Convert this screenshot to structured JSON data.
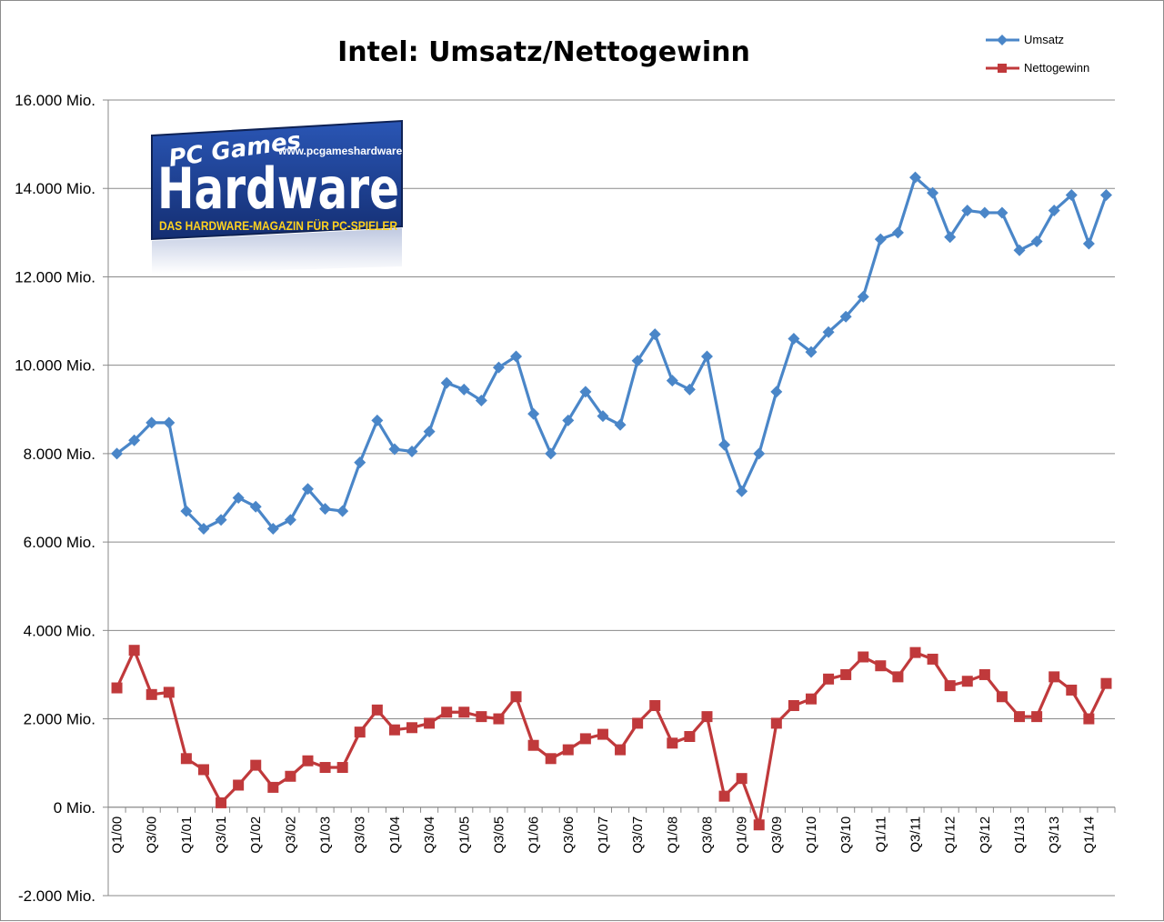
{
  "chart_data": {
    "type": "line",
    "title": "Intel: Umsatz/Nettogewinn",
    "xlabel": "",
    "ylabel": "",
    "ylim": [
      -2000,
      16000
    ],
    "y_ticks": [
      {
        "value": 16000,
        "label": "16.000 Mio."
      },
      {
        "value": 14000,
        "label": "14.000 Mio."
      },
      {
        "value": 12000,
        "label": "12.000 Mio."
      },
      {
        "value": 10000,
        "label": "10.000 Mio."
      },
      {
        "value": 8000,
        "label": "8.000 Mio."
      },
      {
        "value": 6000,
        "label": "6.000 Mio."
      },
      {
        "value": 4000,
        "label": "4.000 Mio."
      },
      {
        "value": 2000,
        "label": "2.000 Mio."
      },
      {
        "value": 0,
        "label": "0 Mio."
      },
      {
        "value": -2000,
        "label": "-2.000 Mio."
      }
    ],
    "categories": [
      "Q1/00",
      "Q2/00",
      "Q3/00",
      "Q4/00",
      "Q1/01",
      "Q2/01",
      "Q3/01",
      "Q4/01",
      "Q1/02",
      "Q2/02",
      "Q3/02",
      "Q4/02",
      "Q1/03",
      "Q2/03",
      "Q3/03",
      "Q4/03",
      "Q1/04",
      "Q2/04",
      "Q3/04",
      "Q4/04",
      "Q1/05",
      "Q2/05",
      "Q3/05",
      "Q4/05",
      "Q1/06",
      "Q2/06",
      "Q3/06",
      "Q4/06",
      "Q1/07",
      "Q2/07",
      "Q3/07",
      "Q4/07",
      "Q1/08",
      "Q2/08",
      "Q3/08",
      "Q4/08",
      "Q1/09",
      "Q2/09",
      "Q3/09",
      "Q4/09",
      "Q1/10",
      "Q2/10",
      "Q3/10",
      "Q4/10",
      "Q1/11",
      "Q2/11",
      "Q3/11",
      "Q4/11",
      "Q1/12",
      "Q2/12",
      "Q3/12",
      "Q4/12",
      "Q1/13",
      "Q2/13",
      "Q3/13",
      "Q4/13",
      "Q1/14",
      "Q2/14"
    ],
    "x_tick_labels": [
      "Q1/00",
      "Q3/00",
      "Q1/01",
      "Q3/01",
      "Q1/02",
      "Q3/02",
      "Q1/03",
      "Q3/03",
      "Q1/04",
      "Q3/04",
      "Q1/05",
      "Q3/05",
      "Q1/06",
      "Q3/06",
      "Q1/07",
      "Q3/07",
      "Q1/08",
      "Q3/08",
      "Q1/09",
      "Q3/09",
      "Q1/10",
      "Q3/10",
      "Q1/11",
      "Q3/11",
      "Q1/12",
      "Q3/12",
      "Q1/13",
      "Q3/13",
      "Q1/14"
    ],
    "grid": {
      "horizontal": true,
      "vertical": false
    },
    "legend_position": "top-right",
    "series": [
      {
        "name": "Umsatz",
        "color": "#4a86c8",
        "marker": "diamond",
        "values": [
          8000,
          8300,
          8700,
          8700,
          6700,
          6300,
          6500,
          7000,
          6800,
          6300,
          6500,
          7200,
          6750,
          6700,
          7800,
          8750,
          8100,
          8050,
          8500,
          9600,
          9450,
          9200,
          9950,
          10200,
          8900,
          8000,
          8750,
          9400,
          8850,
          8650,
          10100,
          10700,
          9650,
          9450,
          10200,
          8200,
          7150,
          8000,
          9400,
          10600,
          10300,
          10750,
          11100,
          11550,
          12850,
          13000,
          14250,
          13900,
          12900,
          13500,
          13450,
          13450,
          12600,
          12800,
          13500,
          13850,
          12750,
          13850
        ]
      },
      {
        "name": "Nettogewinn",
        "color": "#c0393b",
        "marker": "square",
        "values": [
          2700,
          3550,
          2550,
          2600,
          1100,
          850,
          100,
          500,
          950,
          450,
          700,
          1050,
          900,
          900,
          1700,
          2200,
          1750,
          1800,
          1900,
          2150,
          2150,
          2050,
          2000,
          2500,
          1400,
          1100,
          1300,
          1550,
          1650,
          1300,
          1900,
          2300,
          1450,
          1600,
          2050,
          250,
          650,
          -400,
          1900,
          2300,
          2450,
          2900,
          3000,
          3400,
          3200,
          2950,
          3500,
          3350,
          2750,
          2850,
          3000,
          2500,
          2050,
          2050,
          2950,
          2650,
          2000,
          2800
        ]
      }
    ]
  },
  "logo": {
    "brand_top": "PC Games",
    "brand_main": "Hardware",
    "url": "www.pcgameshardware.de",
    "tagline": "DAS HARDWARE-MAGAZIN FÜR PC-SPIELER",
    "colors": {
      "background": "#1c3f94",
      "text": "#ffffff",
      "tagline": "#ffd21f",
      "accent": "#f5c518"
    }
  }
}
